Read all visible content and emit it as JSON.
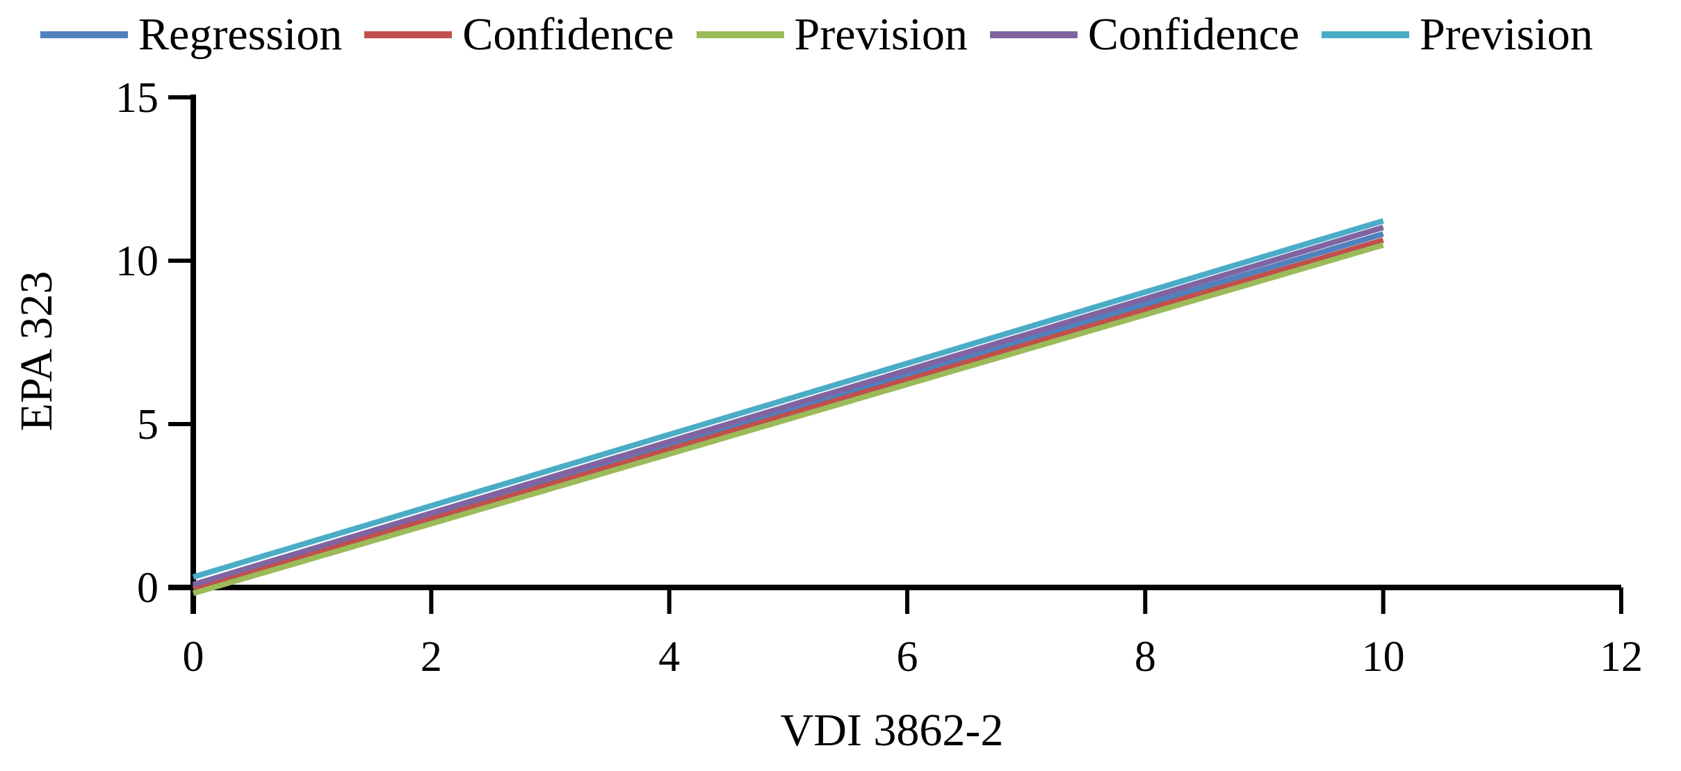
{
  "figure": {
    "background": "#ffffff",
    "text_color": "#000000",
    "axis_color": "#000000"
  },
  "chart_data": {
    "type": "line",
    "title": "",
    "xlabel": "VDI 3862-2",
    "ylabel": "EPA 323",
    "xlim": [
      0,
      12
    ],
    "ylim": [
      0,
      15
    ],
    "xticks": [
      0,
      2,
      4,
      6,
      8,
      10,
      12
    ],
    "yticks": [
      0,
      5,
      10,
      15
    ],
    "grid": false,
    "legend_position": "top",
    "series": [
      {
        "name": "Regression",
        "color": "#4F81BD",
        "x": [
          0,
          10
        ],
        "y": [
          0.03,
          10.82
        ]
      },
      {
        "name": "Confidence",
        "color": "#C0504D",
        "x": [
          0,
          10
        ],
        "y": [
          -0.04,
          10.63
        ]
      },
      {
        "name": "Prevision",
        "color": "#9BBB59",
        "x": [
          0,
          10
        ],
        "y": [
          -0.18,
          10.48
        ]
      },
      {
        "name": "Confidence",
        "color": "#8064A2",
        "x": [
          0,
          10
        ],
        "y": [
          0.09,
          11.02
        ]
      },
      {
        "name": "Prevision",
        "color": "#4BACC6",
        "x": [
          0,
          10
        ],
        "y": [
          0.32,
          11.22
        ]
      }
    ]
  }
}
